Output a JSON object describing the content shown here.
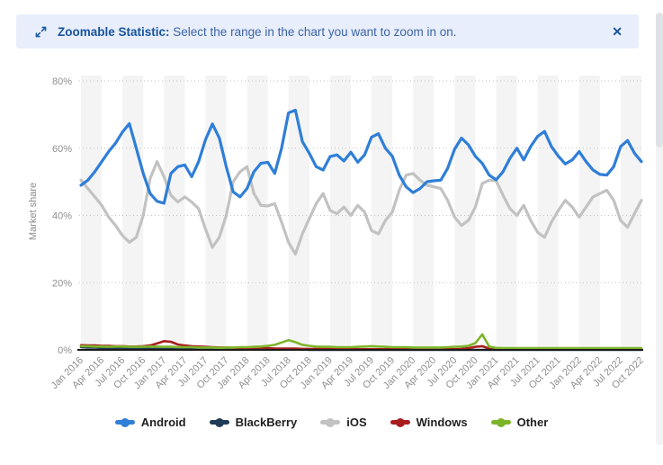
{
  "banner": {
    "title_bold": "Zoomable Statistic:",
    "message": " Select the range in the chart you want to zoom in on.",
    "close_glyph": "✕",
    "icon": "zoom-arrows-icon"
  },
  "colors": {
    "banner_bg": "#e8eefb",
    "banner_title": "#17549e",
    "banner_text": "#3c64a8",
    "band": "#f4f4f4",
    "grid_dotted": "#c2c2c2",
    "axis_line": "#1a1a1a",
    "tick_label": "#8f8f8f",
    "axis_title": "#8a8a8a",
    "legend_text": "#1f1f1f"
  },
  "chart_data": {
    "type": "line",
    "ylabel": "Market share",
    "ylim": [
      0,
      80
    ],
    "y_tick_labels": [
      "0%",
      "20%",
      "40%",
      "60%",
      "80%"
    ],
    "x_tick_labels": [
      "Jan 2016",
      "Apr 2016",
      "Jul 2016",
      "Oct 2016",
      "Jan 2017",
      "Apr 2017",
      "Jul 2017",
      "Oct 2017",
      "Jan 2018",
      "Apr 2018",
      "Jul 2018",
      "Oct 2018",
      "Jan 2019",
      "Apr 2019",
      "Jul 2019",
      "Oct 2019",
      "Jan 2020",
      "Apr 2020",
      "Jul 2020",
      "Oct 2020",
      "Jan 2021",
      "Apr 2021",
      "Jul 2021",
      "Oct 2021",
      "Jan 2022",
      "Apr 2022",
      "Jul 2022",
      "Oct 2022"
    ],
    "x_range": [
      "Jan 2016",
      "Oct 2022"
    ],
    "x_resolution": "monthly",
    "grid": "horizontal-dotted",
    "background_bands": "alternating quarterly vertical bands",
    "legend_position": "bottom",
    "series": [
      {
        "name": "Android",
        "color": "#2f7ed8",
        "values": [
          49.0,
          50.5,
          53.0,
          56.0,
          59.0,
          61.5,
          64.8,
          67.3,
          60.0,
          52.5,
          46.5,
          44.2,
          43.6,
          52.5,
          54.5,
          55.0,
          51.5,
          56.0,
          62.5,
          67.2,
          63.0,
          54.5,
          47.0,
          45.5,
          48.0,
          53.0,
          55.5,
          55.8,
          52.5,
          60.0,
          70.5,
          71.3,
          62.0,
          58.5,
          54.5,
          53.5,
          57.5,
          58.0,
          56.2,
          58.8,
          55.8,
          58.0,
          63.3,
          64.3,
          60.0,
          57.6,
          52.0,
          48.5,
          46.8,
          48.0,
          50.0,
          50.3,
          50.5,
          54.0,
          59.7,
          63.0,
          61.0,
          57.6,
          55.5,
          52.0,
          50.6,
          53.0,
          57.0,
          60.0,
          56.5,
          60.5,
          63.5,
          65.0,
          60.5,
          57.6,
          55.3,
          56.5,
          59.0,
          56.0,
          53.5,
          52.2,
          52.0,
          54.5,
          60.5,
          62.3,
          58.5,
          56.0
        ]
      },
      {
        "name": "BlackBerry",
        "color": "#1f3b57",
        "values": [
          0.8,
          0.7,
          0.7,
          0.6,
          0.6,
          0.5,
          0.5,
          0.4,
          0.4,
          0.4,
          0.3,
          0.3,
          0.3,
          0.3,
          0.2,
          0.2,
          0.2,
          0.2,
          0.2,
          0.1,
          0.1,
          0.1,
          0.1,
          0.1,
          0.1,
          0.1,
          0.1,
          0.1,
          0.1,
          0.1,
          0.1,
          0.1,
          0.1,
          0.0,
          0.0,
          0.0,
          0.0,
          0.0,
          0.0,
          0.0,
          0.0,
          0.0,
          0.0,
          0.0,
          0.0,
          0.0,
          0.0,
          0.0,
          0.0,
          0.0,
          0.0,
          0.0,
          0.0,
          0.0,
          0.0,
          0.0,
          0.0,
          0.0,
          0.0,
          0.0,
          0.0,
          0.0,
          0.0,
          0.0,
          0.0,
          0.0,
          0.0,
          0.0,
          0.0,
          0.0,
          0.0,
          0.0,
          0.0,
          0.0,
          0.0,
          0.0,
          0.0,
          0.0,
          0.0,
          0.0,
          0.0,
          0.0
        ]
      },
      {
        "name": "iOS",
        "color": "#c2c2c2",
        "values": [
          50.5,
          48.0,
          45.5,
          43.0,
          39.5,
          37.0,
          34.0,
          32.0,
          33.5,
          40.0,
          51.0,
          56.0,
          51.5,
          46.0,
          44.0,
          45.5,
          44.0,
          42.0,
          36.0,
          30.5,
          33.5,
          40.0,
          50.0,
          53.0,
          54.5,
          46.5,
          43.0,
          42.8,
          43.5,
          38.0,
          32.0,
          28.5,
          34.5,
          39.0,
          43.5,
          46.5,
          41.5,
          40.5,
          42.5,
          40.0,
          43.0,
          41.0,
          35.5,
          34.5,
          38.5,
          41.0,
          47.5,
          52.0,
          52.5,
          50.5,
          49.0,
          48.5,
          48.0,
          44.5,
          39.5,
          37.0,
          38.5,
          42.5,
          49.5,
          50.5,
          50.3,
          46.0,
          42.0,
          40.0,
          43.0,
          38.5,
          35.0,
          33.5,
          38.0,
          41.5,
          44.5,
          42.5,
          39.5,
          42.5,
          45.5,
          46.5,
          47.5,
          44.5,
          38.5,
          36.5,
          40.5,
          44.5
        ]
      },
      {
        "name": "Windows",
        "color": "#a81e1e",
        "values": [
          1.4,
          1.3,
          1.3,
          1.2,
          1.2,
          1.1,
          1.1,
          1.0,
          1.0,
          1.1,
          1.3,
          1.9,
          2.6,
          2.4,
          1.6,
          1.3,
          1.1,
          1.0,
          0.9,
          0.8,
          0.7,
          0.7,
          0.6,
          0.6,
          0.6,
          0.5,
          0.5,
          0.5,
          0.4,
          0.4,
          0.4,
          0.4,
          0.3,
          0.3,
          0.3,
          0.3,
          0.3,
          0.3,
          0.3,
          0.3,
          0.2,
          0.2,
          0.2,
          0.2,
          0.2,
          0.2,
          0.2,
          0.2,
          0.2,
          0.2,
          0.2,
          0.2,
          0.2,
          0.2,
          0.2,
          0.3,
          0.5,
          0.9,
          1.1,
          0.4,
          0.2,
          0.1,
          0.1,
          0.1,
          0.1,
          0.1,
          0.1,
          0.1,
          0.1,
          0.1,
          0.1,
          0.1,
          0.1,
          0.1,
          0.1,
          0.1,
          0.1,
          0.1,
          0.1,
          0.1,
          0.1,
          0.1
        ]
      },
      {
        "name": "Other",
        "color": "#7db52a",
        "values": [
          1.1,
          1.1,
          1.0,
          1.0,
          0.9,
          1.0,
          1.0,
          0.9,
          0.9,
          0.9,
          1.0,
          1.0,
          0.9,
          0.9,
          0.8,
          0.8,
          0.8,
          0.7,
          0.7,
          0.7,
          0.6,
          0.7,
          0.7,
          0.8,
          0.8,
          0.9,
          1.0,
          1.2,
          1.5,
          2.2,
          2.9,
          2.3,
          1.5,
          1.2,
          1.0,
          0.9,
          0.9,
          0.8,
          0.8,
          0.8,
          0.9,
          1.0,
          1.1,
          1.0,
          0.9,
          0.8,
          0.8,
          0.8,
          0.7,
          0.7,
          0.7,
          0.7,
          0.7,
          0.8,
          0.9,
          1.0,
          1.2,
          2.0,
          4.6,
          1.0,
          0.6,
          0.5,
          0.5,
          0.5,
          0.5,
          0.5,
          0.5,
          0.5,
          0.5,
          0.5,
          0.5,
          0.5,
          0.5,
          0.5,
          0.5,
          0.5,
          0.5,
          0.5,
          0.5,
          0.5,
          0.5,
          0.5
        ]
      }
    ]
  }
}
